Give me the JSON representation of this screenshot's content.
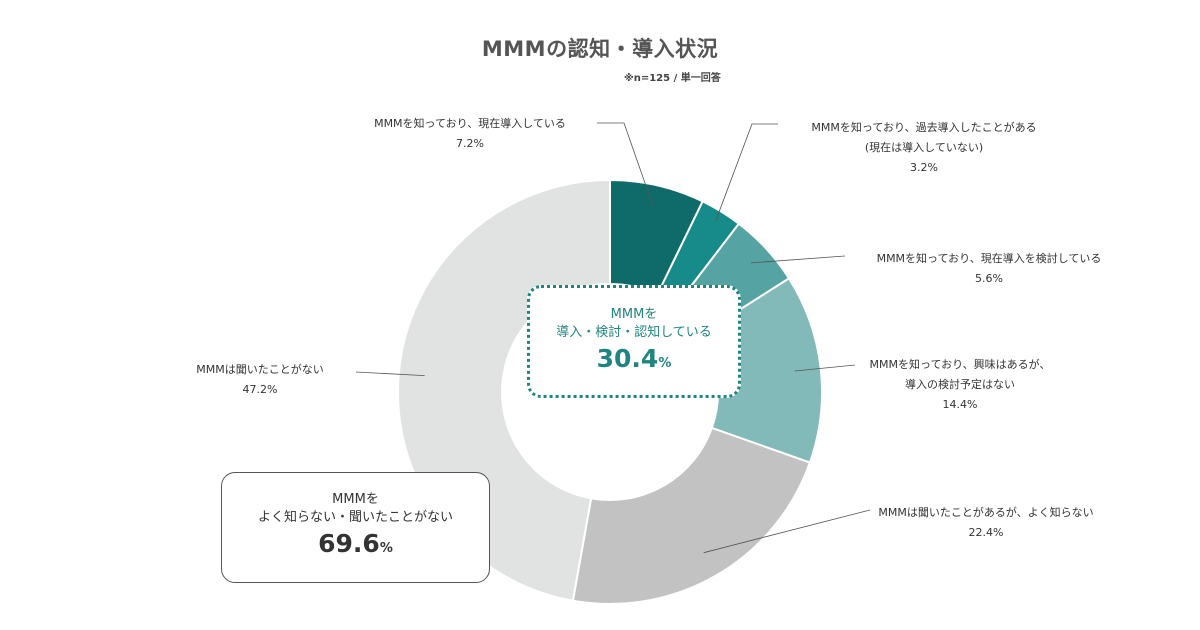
{
  "chart_data": {
    "type": "pie",
    "title": "MMMの認知・導入状況",
    "subtitle": "※n=125 / 単一回答",
    "slices": [
      {
        "label_lines": [
          "MMMを知っており、現在導入している"
        ],
        "value": 7.2,
        "value_label": "7.2%",
        "color": "#0f6b6a"
      },
      {
        "label_lines": [
          "MMMを知っており、過去導入したことがある",
          "(現在は導入していない)"
        ],
        "value": 3.2,
        "value_label": "3.2%",
        "color": "#178b8a"
      },
      {
        "label_lines": [
          "MMMを知っており、現在導入を検討している"
        ],
        "value": 5.6,
        "value_label": "5.6%",
        "color": "#55a3a3"
      },
      {
        "label_lines": [
          "MMMを知っており、興味はあるが、",
          "導入の検討予定はない"
        ],
        "value": 14.4,
        "value_label": "14.4%",
        "color": "#82baba"
      },
      {
        "label_lines": [
          "MMMは聞いたことがあるが、よく知らない"
        ],
        "value": 22.4,
        "value_label": "22.4%",
        "color": "#c2c2c2"
      },
      {
        "label_lines": [
          "MMMは聞いたことがない"
        ],
        "value": 47.2,
        "value_label": "47.2%",
        "color": "#e1e2e2"
      }
    ],
    "summary_aware": {
      "line1": "MMMを",
      "line2": "導入・検討・認知している",
      "value": "30.4",
      "unit": "%",
      "color": "#1f8580"
    },
    "summary_unaware": {
      "line1": "MMMを",
      "line2": "よく知らない・聞いたことがない",
      "value": "69.6",
      "unit": "%"
    }
  }
}
